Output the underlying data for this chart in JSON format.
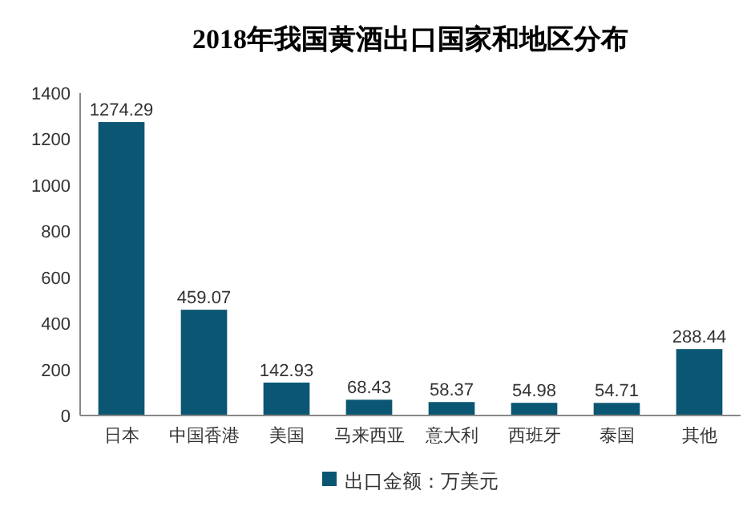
{
  "chart_data": {
    "type": "bar",
    "title": "2018年我国黄酒出口国家和地区分布",
    "categories": [
      "日本",
      "中国香港",
      "美国",
      "马来西亚",
      "意大利",
      "西班牙",
      "泰国",
      "其他"
    ],
    "series": [
      {
        "name": "出口金额：万美元",
        "color": "#0b5673",
        "values": [
          1274.29,
          459.07,
          142.93,
          68.43,
          58.37,
          54.98,
          54.71,
          288.44
        ]
      }
    ],
    "ylim": [
      0,
      1400
    ],
    "yticks": [
      0,
      200,
      400,
      600,
      800,
      1000,
      1200,
      1400
    ],
    "data_labels": true,
    "legend": "bottom"
  }
}
